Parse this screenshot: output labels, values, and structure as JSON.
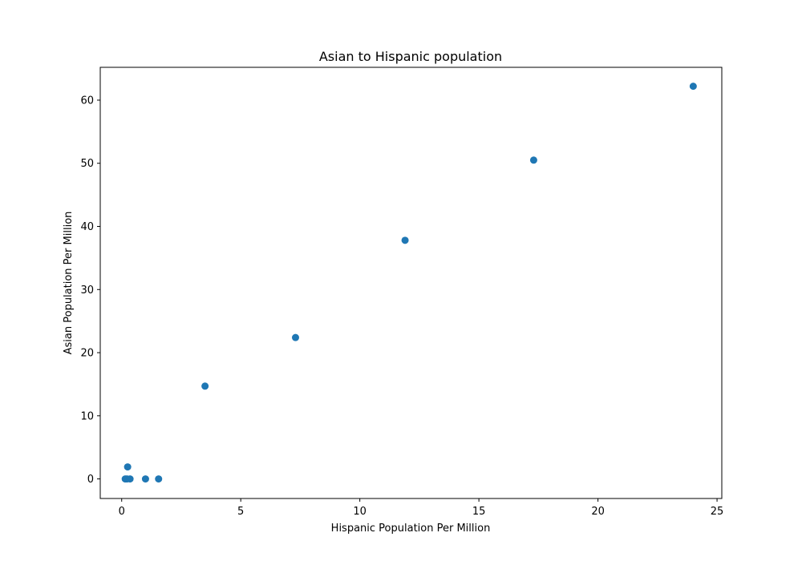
{
  "chart_data": {
    "type": "scatter",
    "title": "Asian to Hispanic population",
    "xlabel": "Hispanic Population Per Million",
    "ylabel": "Asian Population Per Million",
    "xlim": [
      -0.9,
      25.2
    ],
    "ylim": [
      -3.1,
      65.2
    ],
    "x_ticks": [
      0,
      5,
      10,
      15,
      20,
      25
    ],
    "y_ticks": [
      0,
      10,
      20,
      30,
      40,
      50,
      60
    ],
    "grid": false,
    "marker_color": "#1f77b4",
    "points": [
      {
        "x": 0.15,
        "y": 0.0
      },
      {
        "x": 0.22,
        "y": 0.0
      },
      {
        "x": 0.35,
        "y": 0.0
      },
      {
        "x": 0.25,
        "y": 1.9
      },
      {
        "x": 1.0,
        "y": 0.0
      },
      {
        "x": 1.55,
        "y": 0.0
      },
      {
        "x": 3.5,
        "y": 14.7
      },
      {
        "x": 7.3,
        "y": 22.4
      },
      {
        "x": 11.9,
        "y": 37.8
      },
      {
        "x": 17.3,
        "y": 50.5
      },
      {
        "x": 24.0,
        "y": 62.2
      }
    ]
  }
}
